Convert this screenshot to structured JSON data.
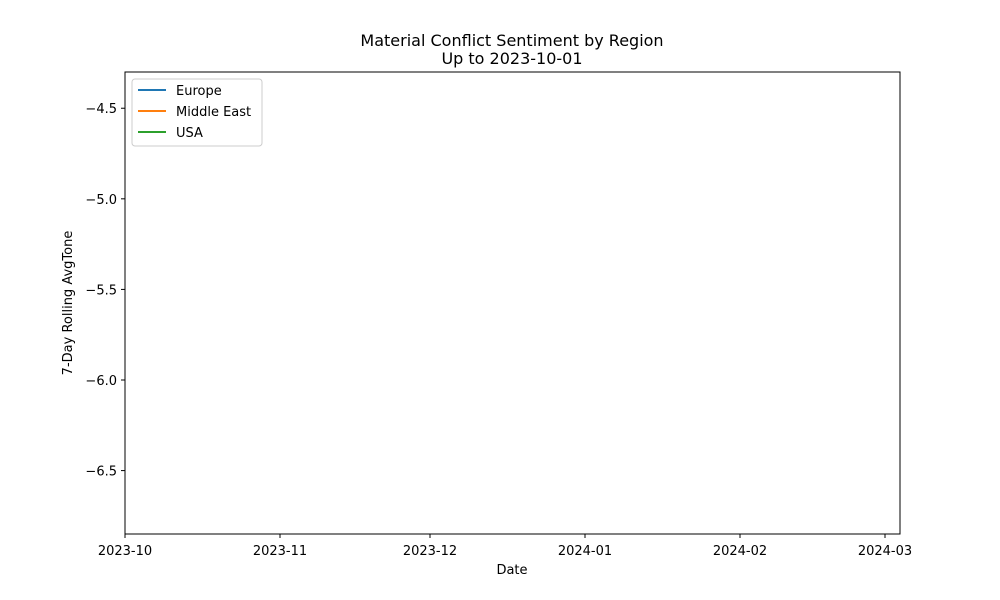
{
  "chart_data": {
    "type": "line",
    "title": "Material Conflict Sentiment by Region",
    "subtitle": "Up to 2023-10-01",
    "xlabel": "Date",
    "ylabel": "7-Day Rolling AvgTone",
    "xlim": [
      "2023-10-01",
      "2024-03-04"
    ],
    "ylim": [
      -6.85,
      -4.3
    ],
    "x_ticks": [
      {
        "date": "2023-10-01",
        "label": "2023-10"
      },
      {
        "date": "2023-11-01",
        "label": "2023-11"
      },
      {
        "date": "2023-12-01",
        "label": "2023-12"
      },
      {
        "date": "2024-01-01",
        "label": "2024-01"
      },
      {
        "date": "2024-02-01",
        "label": "2024-02"
      },
      {
        "date": "2024-03-01",
        "label": "2024-03"
      }
    ],
    "y_ticks": [
      {
        "value": -4.5,
        "label": "−4.5"
      },
      {
        "value": -5.0,
        "label": "−5.0"
      },
      {
        "value": -5.5,
        "label": "−5.5"
      },
      {
        "value": -6.0,
        "label": "−6.0"
      },
      {
        "value": -6.5,
        "label": "−6.5"
      }
    ],
    "grid": false,
    "legend_position": "top-left",
    "series": [
      {
        "name": "Europe",
        "color": "#1f77b4",
        "x": [],
        "y": []
      },
      {
        "name": "Middle East",
        "color": "#ff7f0e",
        "x": [],
        "y": []
      },
      {
        "name": "USA",
        "color": "#2ca02c",
        "x": [],
        "y": []
      }
    ]
  }
}
